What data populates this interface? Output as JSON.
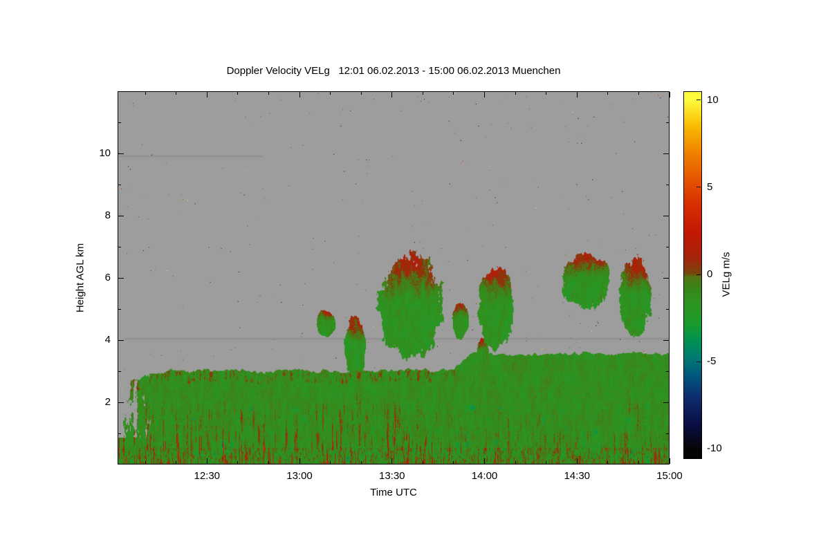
{
  "chart_data": {
    "type": "heatmap",
    "title": "Doppler Velocity VELg   12:01 06.02.2013 - 15:00 06.02.2013 Muenchen",
    "site": "Muenchen",
    "period": {
      "start": "12:01 06.02.2013",
      "end": "15:00 06.02.2013"
    },
    "xlabel": "Time UTC",
    "ylabel": "Height AGL km",
    "x_range_hours": [
      12.0167,
      15.0
    ],
    "y_range_km": [
      0,
      12
    ],
    "x_ticks": [
      {
        "value": 12.5,
        "label": "12:30"
      },
      {
        "value": 13.0,
        "label": "13:00"
      },
      {
        "value": 13.5,
        "label": "13:30"
      },
      {
        "value": 14.0,
        "label": "14:00"
      },
      {
        "value": 14.5,
        "label": "14:30"
      },
      {
        "value": 15.0,
        "label": "15:00"
      }
    ],
    "x_minor_interval_hours": 0.166667,
    "y_ticks": [
      {
        "value": 2,
        "label": "2"
      },
      {
        "value": 4,
        "label": "4"
      },
      {
        "value": 6,
        "label": "6"
      },
      {
        "value": 8,
        "label": "8"
      },
      {
        "value": 10,
        "label": "10"
      }
    ],
    "y_minor_ticks": [
      1,
      3,
      5,
      7,
      9,
      11
    ],
    "no_signal_color": "#9d9d9d",
    "colorbar": {
      "label": "VELg m/s",
      "range": [
        -10.5,
        10.5
      ],
      "ticks": [
        {
          "value": 10,
          "label": "10"
        },
        {
          "value": 5,
          "label": "5"
        },
        {
          "value": 0,
          "label": "0"
        },
        {
          "value": -5,
          "label": "-5"
        },
        {
          "value": -10,
          "label": "-10"
        }
      ],
      "colormap": [
        [
          -10,
          5,
          5,
          5
        ],
        [
          -8.5,
          10,
          15,
          70
        ],
        [
          -7,
          15,
          45,
          110
        ],
        [
          -5.8,
          0,
          85,
          125
        ],
        [
          -4.8,
          0,
          120,
          115
        ],
        [
          -3.8,
          0,
          145,
          85
        ],
        [
          -2.8,
          25,
          155,
          45
        ],
        [
          -1.8,
          45,
          150,
          35
        ],
        [
          -0.8,
          55,
          135,
          25
        ],
        [
          -0.1,
          85,
          115,
          20
        ],
        [
          0.1,
          120,
          70,
          15
        ],
        [
          1,
          165,
          35,
          10
        ],
        [
          2.5,
          195,
          25,
          5
        ],
        [
          4,
          215,
          45,
          0
        ],
        [
          5.5,
          230,
          85,
          0
        ],
        [
          7,
          240,
          130,
          0
        ],
        [
          8.5,
          250,
          185,
          0
        ],
        [
          10,
          255,
          250,
          60
        ]
      ]
    },
    "features": {
      "description": "Vertically pointing Doppler radar/lidar time-height section. Gray = no signal. Boundary layer below ~3 km filled with green (downward ~-1 to -2 m/s) with red updraft streaks (+1 to +4 m/s) and teal patches (~-4 m/s). Mid-level cloud patches between 3.5 and 6.7 km, mostly green with reddish upper edges. Sparse single-pixel noise speckles in the gray region.",
      "boundary_layer": {
        "top_km_early": 3.0,
        "top_km_late": 3.55,
        "rise_start_utc": 13.8,
        "rise_end_utc": 13.95,
        "left_edge_top_km": 2.65,
        "left_edge_ragged_until_utc": 12.3,
        "typical_velocity_ms": -1.5,
        "updraft_streak_max_ms": 4,
        "downdraft_patch_ms": -4
      },
      "clouds": [
        {
          "t_center": 13.145,
          "h_center": 4.55,
          "t_radius": 0.05,
          "h_radius": 0.42,
          "seed": 1
        },
        {
          "t_center": 13.3,
          "h_center": 3.75,
          "t_radius": 0.055,
          "h_radius": 0.95,
          "seed": 2
        },
        {
          "t_center": 13.6,
          "h_center": 5.05,
          "t_radius": 0.17,
          "h_radius": 1.65,
          "seed": 3
        },
        {
          "t_center": 13.87,
          "h_center": 4.6,
          "t_radius": 0.045,
          "h_radius": 0.55,
          "seed": 4
        },
        {
          "t_center": 14.06,
          "h_center": 5.0,
          "t_radius": 0.095,
          "h_radius": 1.35,
          "seed": 5
        },
        {
          "t_center": 13.99,
          "h_center": 3.55,
          "t_radius": 0.03,
          "h_radius": 0.55,
          "seed": 6
        },
        {
          "t_center": 14.55,
          "h_center": 5.9,
          "t_radius": 0.13,
          "h_radius": 0.85,
          "seed": 7
        },
        {
          "t_center": 14.82,
          "h_center": 5.35,
          "t_radius": 0.085,
          "h_radius": 1.25,
          "seed": 8
        }
      ],
      "artifact_lines": [
        {
          "height_km": 4.03,
          "t_start": 12.05,
          "t_end": 15.0
        },
        {
          "height_km": 9.93,
          "t_start": 12.02,
          "t_end": 12.8
        }
      ],
      "speckle_density": 0.0008
    }
  }
}
